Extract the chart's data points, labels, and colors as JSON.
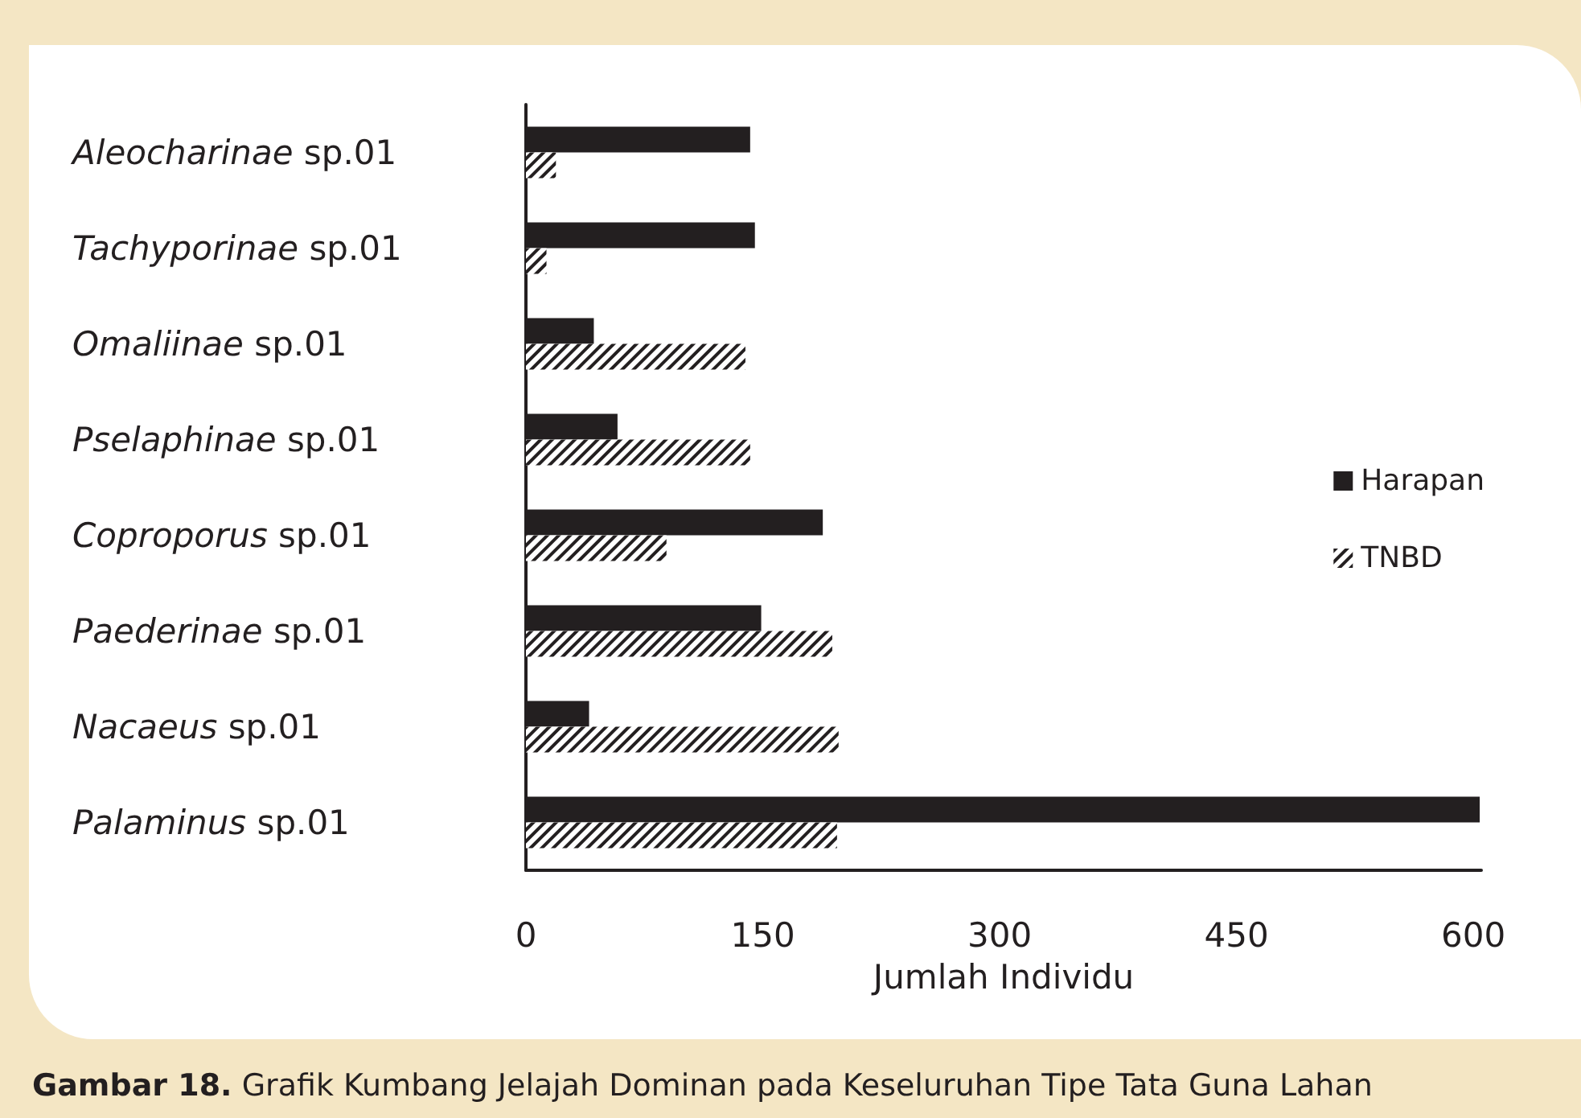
{
  "chart_data": {
    "type": "bar",
    "orientation": "horizontal",
    "categories": [
      "Aleocharinae sp.01",
      "Tachyporinae sp.01",
      "Omaliinae sp.01",
      "Pselaphinae sp.01",
      "Coproporus sp.01",
      "Paederinae sp.01",
      "Nacaeus sp.01",
      "Palaminus sp.01"
    ],
    "series": [
      {
        "name": "Harapan",
        "color": "#231f20",
        "values": [
          142,
          145,
          43,
          58,
          188,
          149,
          40,
          604
        ]
      },
      {
        "name": "TNBD",
        "color": "#231f20",
        "values": [
          19,
          13,
          139,
          142,
          89,
          194,
          198,
          197
        ]
      }
    ],
    "xlabel": "Jumlah Individu",
    "xlim": [
      0,
      605
    ],
    "xticks": [
      0,
      150,
      300,
      450,
      600
    ],
    "grid": false,
    "legend": "right",
    "annotations": [
      "Gambar 18. Grafik Kumbang Jelajah Dominan pada Keseluruhan Tipe Tata Guna Lahan"
    ]
  }
}
